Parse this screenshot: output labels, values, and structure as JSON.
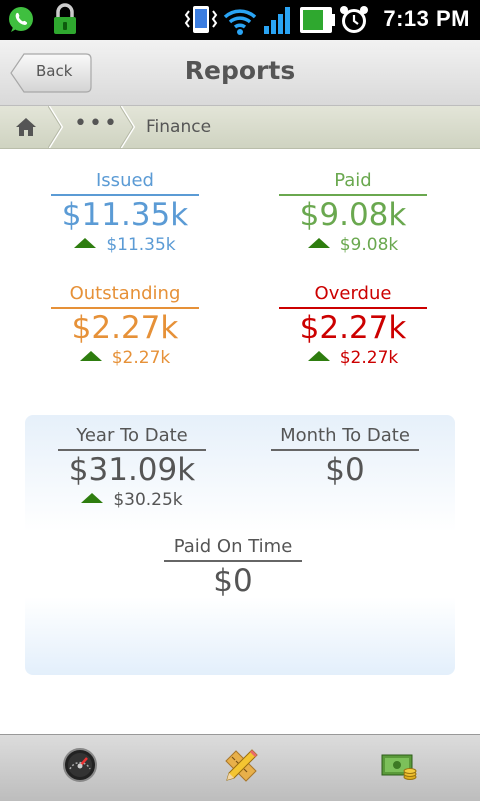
{
  "status_bar": {
    "time": "7:13 PM",
    "icons": [
      "whatsapp-icon",
      "lock-icon",
      "vibrate-icon",
      "wifi-icon",
      "signal-icon",
      "battery-icon",
      "alarm-icon"
    ]
  },
  "header": {
    "back_label": "Back",
    "title": "Reports"
  },
  "breadcrumb": {
    "home_icon": "home-icon",
    "ellipsis": "•••",
    "current": "Finance"
  },
  "metrics": {
    "issued": {
      "label": "Issued",
      "value": "$11.35k",
      "delta": "$11.35k",
      "color": "#5b9bd5"
    },
    "paid": {
      "label": "Paid",
      "value": "$9.08k",
      "delta": "$9.08k",
      "color": "#6aa84f"
    },
    "outstanding": {
      "label": "Outstanding",
      "value": "$2.27k",
      "delta": "$2.27k",
      "color": "#e69138"
    },
    "overdue": {
      "label": "Overdue",
      "value": "$2.27k",
      "delta": "$2.27k",
      "color": "#cc0000"
    }
  },
  "summary": {
    "ytd": {
      "label": "Year To Date",
      "value": "$31.09k",
      "delta": "$30.25k"
    },
    "mtd": {
      "label": "Month To Date",
      "value": "$0"
    },
    "paid_on_time": {
      "label": "Paid On Time",
      "value": "$0"
    }
  },
  "tab_bar": {
    "tabs": [
      {
        "icon": "speedometer-icon"
      },
      {
        "icon": "pencil-ruler-icon"
      },
      {
        "icon": "cash-icon"
      }
    ]
  },
  "colors": {
    "up_arrow": "#2e7d0f",
    "text_gray": "#555555"
  }
}
